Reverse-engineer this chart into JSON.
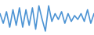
{
  "values": [
    55,
    30,
    60,
    20,
    65,
    25,
    70,
    20,
    65,
    25,
    70,
    15,
    75,
    40,
    10,
    75,
    35,
    55,
    40,
    60,
    30,
    55,
    35,
    50,
    40,
    55,
    35,
    65,
    30,
    55
  ],
  "line_color": "#4d94d4",
  "background_color": "#ffffff",
  "linewidth": 1.2
}
